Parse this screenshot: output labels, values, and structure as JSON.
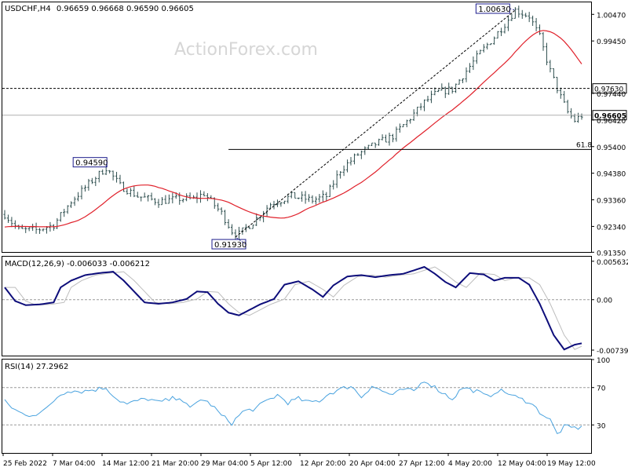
{
  "header": {
    "symbol": "USDCHF,H4",
    "ohlc": "0.96659 0.96668 0.96590 0.96605"
  },
  "watermark": "ActionForex.com",
  "colors": {
    "price": "#2f4f4f",
    "ma": "#e0202a",
    "macd": "#0d0d7a",
    "signal": "#bdbdbd",
    "rsi": "#4aa3df",
    "level": "#000000",
    "label_border": "#1c1c8c",
    "grid": "#9a9a9a"
  },
  "x_labels": [
    "25 Feb 2022",
    "7 Mar 04:00",
    "14 Mar 12:00",
    "21 Mar 20:00",
    "29 Mar 04:00",
    "5 Apr 12:00",
    "12 Apr 20:00",
    "20 Apr 04:00",
    "27 Apr 12:00",
    "4 May 20:00",
    "12 May 04:00",
    "19 May 12:00"
  ],
  "chart_data": [
    {
      "type": "line",
      "name": "price",
      "ylim": [
        0.9136,
        1.0093
      ],
      "y_ticks": [
        "1.00470",
        "0.99450",
        "0.97440",
        "0.96420",
        "0.95400",
        "0.94380",
        "0.93360",
        "0.92340",
        "0.91350"
      ],
      "tick_values": [
        1.0047,
        0.9945,
        0.9744,
        0.9642,
        0.954,
        0.9438,
        0.9336,
        0.9234,
        0.9135
      ],
      "anchors": [
        [
          0,
          0.928
        ],
        [
          4,
          0.922
        ],
        [
          9,
          0.922
        ],
        [
          14,
          0.924
        ],
        [
          19,
          0.933
        ],
        [
          25,
          0.941
        ],
        [
          29,
          0.9459
        ],
        [
          33,
          0.939
        ],
        [
          38,
          0.935
        ],
        [
          44,
          0.933
        ],
        [
          50,
          0.934
        ],
        [
          54,
          0.934
        ],
        [
          57,
          0.936
        ],
        [
          62,
          0.9285
        ],
        [
          66,
          0.9193
        ],
        [
          71,
          0.925
        ],
        [
          76,
          0.932
        ],
        [
          82,
          0.935
        ],
        [
          88,
          0.9335
        ],
        [
          92,
          0.935
        ],
        [
          96,
          0.945
        ],
        [
          101,
          0.951
        ],
        [
          106,
          0.955
        ],
        [
          111,
          0.958
        ],
        [
          116,
          0.965
        ],
        [
          120,
          0.971
        ],
        [
          124,
          0.975
        ],
        [
          128,
          0.976
        ],
        [
          132,
          0.983
        ],
        [
          136,
          0.99
        ],
        [
          140,
          0.996
        ],
        [
          143,
          1.001
        ],
        [
          146,
          1.0063
        ],
        [
          150,
          1.004
        ],
        [
          153,
          0.996
        ],
        [
          156,
          0.983
        ],
        [
          159,
          0.973
        ],
        [
          161,
          0.9672
        ],
        [
          163,
          0.964
        ],
        [
          165,
          0.966
        ]
      ],
      "bars": 165,
      "ma_period": 20,
      "ma_start": 0.923,
      "price_labels": [
        {
          "text": "1.00630",
          "bar": 146,
          "value": 1.0063
        },
        {
          "text": "0.94590",
          "bar": 29,
          "value": 0.9459
        },
        {
          "text": "0.91930",
          "bar": 66,
          "value": 0.9193
        }
      ],
      "levels": [
        {
          "label": "0.97630",
          "value": 0.9763,
          "style": "dashed"
        },
        {
          "label": "0.96605",
          "value": 0.96605,
          "style": "solid-gray"
        },
        {
          "label": "61.8",
          "value": 0.9529,
          "style": "solid",
          "from_bar": 64
        }
      ],
      "trendline": [
        [
          66,
          0.9193
        ],
        [
          146,
          1.0063
        ]
      ]
    },
    {
      "type": "line",
      "title": "MACD(12,26,9) -0.006033 -0.006212",
      "ylim": [
        -0.0082,
        0.0063
      ],
      "y_ticks": [
        "0.005632",
        "0.00",
        "-0.007395"
      ],
      "tick_values": [
        0.005632,
        0.0,
        -0.007395
      ],
      "series": [
        {
          "role": "macd",
          "points": [
            [
              0,
              0.0018
            ],
            [
              3,
              -0.0002
            ],
            [
              6,
              -0.0008
            ],
            [
              10,
              -0.0007
            ],
            [
              14,
              -0.0004
            ],
            [
              16,
              0.0018
            ],
            [
              19,
              0.0028
            ],
            [
              23,
              0.0036
            ],
            [
              27,
              0.0039
            ],
            [
              31,
              0.0041
            ],
            [
              34,
              0.0028
            ],
            [
              37,
              0.0012
            ],
            [
              40,
              -0.0004
            ],
            [
              44,
              -0.0006
            ],
            [
              48,
              -0.0004
            ],
            [
              52,
              0.0001
            ],
            [
              55,
              0.0012
            ],
            [
              58,
              0.0011
            ],
            [
              61,
              -0.0006
            ],
            [
              64,
              -0.0019
            ],
            [
              67,
              -0.0023
            ],
            [
              70,
              -0.0015
            ],
            [
              73,
              -0.0007
            ],
            [
              77,
              0.0001
            ],
            [
              80,
              0.0022
            ],
            [
              84,
              0.0027
            ],
            [
              88,
              0.0015
            ],
            [
              91,
              0.0004
            ],
            [
              94,
              0.0021
            ],
            [
              98,
              0.0034
            ],
            [
              102,
              0.0036
            ],
            [
              106,
              0.0033
            ],
            [
              110,
              0.0036
            ],
            [
              114,
              0.0038
            ],
            [
              117,
              0.0043
            ],
            [
              120,
              0.0048
            ],
            [
              123,
              0.0038
            ],
            [
              126,
              0.0026
            ],
            [
              129,
              0.0018
            ],
            [
              133,
              0.0039
            ],
            [
              137,
              0.0037
            ],
            [
              140,
              0.0028
            ],
            [
              143,
              0.0032
            ],
            [
              147,
              0.0032
            ],
            [
              150,
              0.0022
            ],
            [
              153,
              -0.0006
            ],
            [
              157,
              -0.0052
            ],
            [
              160,
              -0.0073
            ],
            [
              163,
              -0.0066
            ],
            [
              165,
              -0.0064
            ]
          ]
        },
        {
          "role": "signal",
          "lag": 3
        }
      ]
    },
    {
      "type": "line",
      "title": "RSI(14) 27.2962",
      "ylim": [
        0,
        100
      ],
      "y_ticks": [
        "100",
        "70",
        "30",
        "0"
      ],
      "tick_values": [
        100,
        70,
        30,
        0
      ],
      "series": [
        {
          "role": "rsi",
          "points": [
            [
              0,
              55
            ],
            [
              3,
              46
            ],
            [
              6,
              40
            ],
            [
              9,
              42
            ],
            [
              12,
              47
            ],
            [
              15,
              60
            ],
            [
              18,
              67
            ],
            [
              22,
              66
            ],
            [
              26,
              68
            ],
            [
              29,
              70
            ],
            [
              32,
              58
            ],
            [
              35,
              52
            ],
            [
              38,
              56
            ],
            [
              41,
              58
            ],
            [
              44,
              54
            ],
            [
              47,
              57
            ],
            [
              50,
              60
            ],
            [
              53,
              47
            ],
            [
              56,
              58
            ],
            [
              59,
              52
            ],
            [
              62,
              40
            ],
            [
              65,
              32
            ],
            [
              68,
              44
            ],
            [
              72,
              48
            ],
            [
              75,
              56
            ],
            [
              78,
              62
            ],
            [
              81,
              54
            ],
            [
              84,
              58
            ],
            [
              87,
              54
            ],
            [
              90,
              56
            ],
            [
              93,
              64
            ],
            [
              96,
              68
            ],
            [
              99,
              72
            ],
            [
              102,
              60
            ],
            [
              105,
              72
            ],
            [
              108,
              66
            ],
            [
              111,
              62
            ],
            [
              114,
              68
            ],
            [
              117,
              66
            ],
            [
              120,
              78
            ],
            [
              122,
              73
            ],
            [
              125,
              65
            ],
            [
              128,
              58
            ],
            [
              131,
              70
            ],
            [
              135,
              66
            ],
            [
              138,
              60
            ],
            [
              141,
              67
            ],
            [
              144,
              64
            ],
            [
              147,
              58
            ],
            [
              150,
              55
            ],
            [
              153,
              44
            ],
            [
              156,
              35
            ],
            [
              158,
              20
            ],
            [
              160,
              28
            ],
            [
              162,
              27
            ],
            [
              165,
              27
            ]
          ]
        }
      ]
    }
  ]
}
